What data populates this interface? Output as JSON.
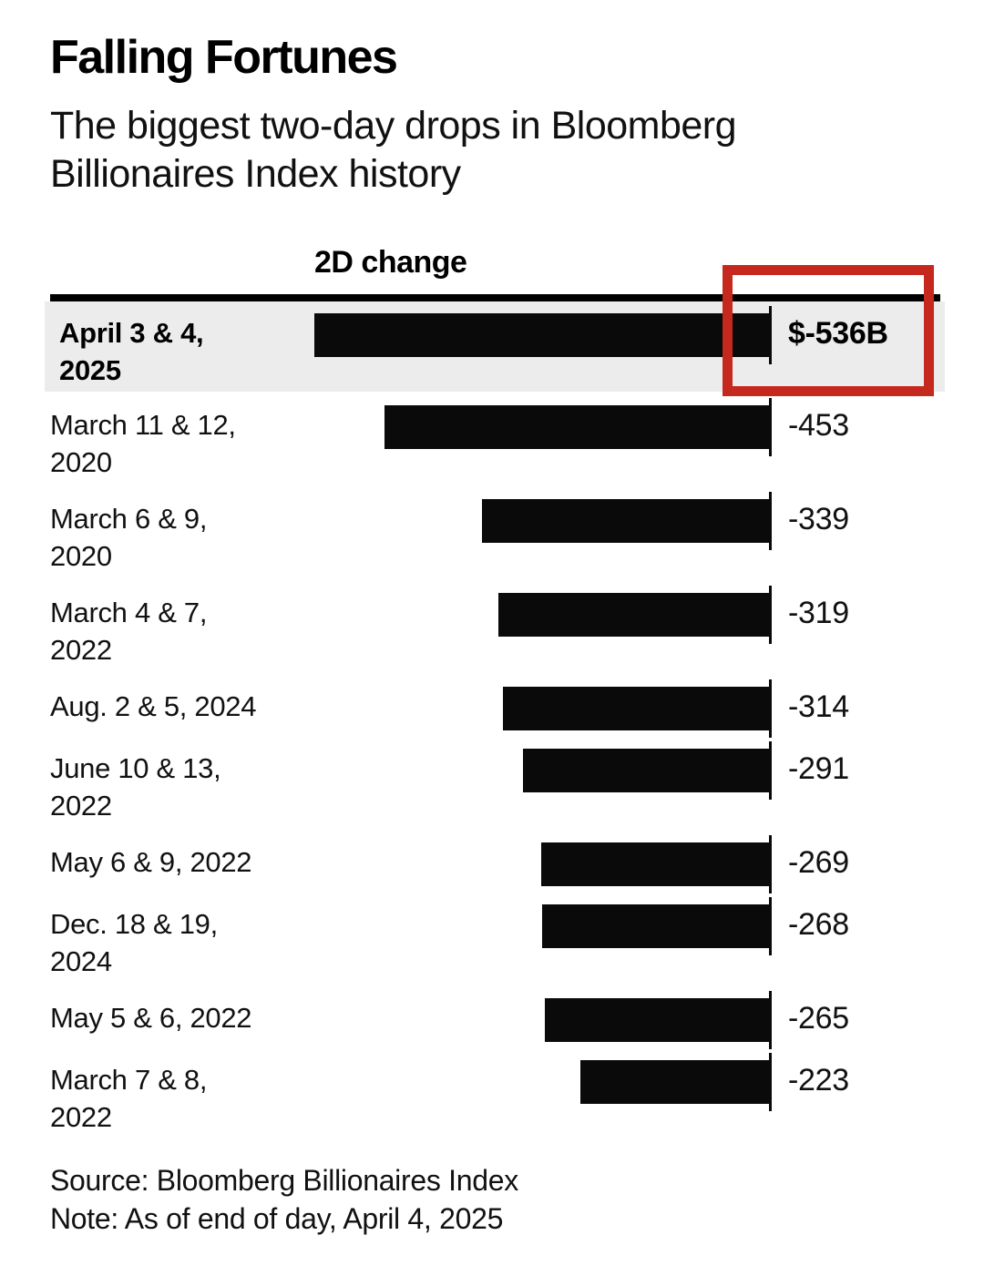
{
  "title": "Falling Fortunes",
  "subtitle": "The biggest two-day drops in Bloomberg Billionaires Index history",
  "subtitle_lines": [
    "The biggest two-day drops in Bloomberg",
    "Billionaires Index history"
  ],
  "column_header": "2D change",
  "footer": {
    "source": "Source: Bloomberg Billionaires Index",
    "note": "Note: As of end of day, April 4, 2025"
  },
  "colors": {
    "text": "#000000",
    "bar": "#0a0a0a",
    "highlight_row_bg": "#ececec",
    "annotation_box_red": "#c5281c",
    "rule": "#000000"
  },
  "chart_data": {
    "type": "bar",
    "orientation": "horizontal",
    "title": "Falling Fortunes",
    "subtitle": "The biggest two-day drops in Bloomberg Billionaires Index history",
    "xlabel": "2D change",
    "ylabel": "",
    "unit": "billions of US dollars",
    "xlim": [
      -536,
      0
    ],
    "grid": false,
    "legend": "none",
    "categories": [
      "April 3 & 4, 2025",
      "March 11 & 12, 2020",
      "March 6 & 9, 2020",
      "March 4 & 7, 2022",
      "Aug. 2 & 5, 2024",
      "June 10 & 13, 2022",
      "May 6 & 9, 2022",
      "Dec. 18 & 19, 2024",
      "May 5 & 6, 2022",
      "March 7 & 8, 2022"
    ],
    "values": [
      -536,
      -453,
      -339,
      -319,
      -314,
      -291,
      -269,
      -268,
      -265,
      -223
    ],
    "value_labels": [
      "$-536B",
      "-453",
      "-339",
      "-319",
      "-314",
      "-291",
      "-269",
      "-268",
      "-265",
      "-223"
    ],
    "highlighted_index": 0,
    "rows": [
      {
        "label_lines": [
          "April 3 & 4,",
          "2025"
        ],
        "value": -536,
        "display": "$-536B",
        "highlight": true
      },
      {
        "label_lines": [
          "March 11 & 12,",
          "2020"
        ],
        "value": -453,
        "display": "-453"
      },
      {
        "label_lines": [
          "March 6 & 9,",
          "2020"
        ],
        "value": -339,
        "display": "-339"
      },
      {
        "label_lines": [
          "March 4 & 7,",
          "2022"
        ],
        "value": -319,
        "display": "-319"
      },
      {
        "label_lines": [
          "Aug. 2 & 5, 2024"
        ],
        "value": -314,
        "display": "-314"
      },
      {
        "label_lines": [
          "June 10 & 13,",
          "2022"
        ],
        "value": -291,
        "display": "-291"
      },
      {
        "label_lines": [
          "May 6 & 9, 2022"
        ],
        "value": -269,
        "display": "-269"
      },
      {
        "label_lines": [
          "Dec. 18 & 19,",
          "2024"
        ],
        "value": -268,
        "display": "-268"
      },
      {
        "label_lines": [
          "May 5 & 6, 2022"
        ],
        "value": -265,
        "display": "-265"
      },
      {
        "label_lines": [
          "March 7 & 8,",
          "2022"
        ],
        "value": -223,
        "display": "-223"
      }
    ]
  }
}
